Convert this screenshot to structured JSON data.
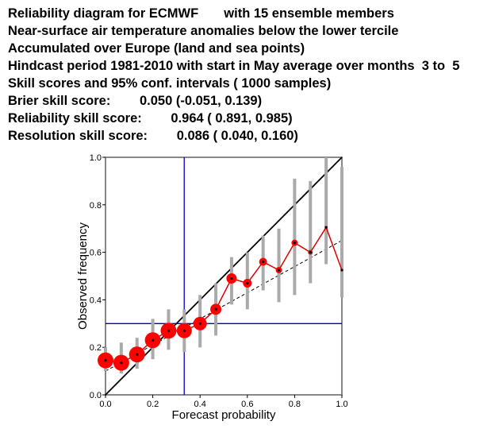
{
  "header": {
    "lines": [
      "Reliability diagram for ECMWF       with 15 ensemble members",
      "Near-surface air temperature anomalies below the lower tercile",
      "Accumulated over Europe (land and sea points)",
      "Hindcast period 1981-2010 with start in May average over months  3 to  5",
      "Skill scores and 95% conf. intervals ( 1000 samples)",
      "Brier skill score:        0.050 (-0.051, 0.139)",
      "Reliability skill score:        0.964 ( 0.891, 0.985)",
      "Resolution skill score:        0.086 ( 0.040, 0.160)"
    ]
  },
  "colors": {
    "frame": "#888888",
    "diagonal": "#000000",
    "climatology": "#0000bb",
    "ci_bars": "#aaaaaa",
    "points": "#ff0000",
    "reliability_line": "#dd0000",
    "center_dot": "#000000"
  },
  "chart_data": {
    "type": "scatter",
    "xlabel": "Forecast probability",
    "ylabel": "Observed frequency",
    "xlim": [
      0,
      1
    ],
    "ylim": [
      0,
      1
    ],
    "xticks": [
      "0.0",
      "0.2",
      "0.4",
      "0.6",
      "0.8",
      "1.0"
    ],
    "yticks": [
      "0.0",
      "0.2",
      "0.4",
      "0.6",
      "0.8",
      "1.0"
    ],
    "climatology": 0.333,
    "observed_climatology": 0.3,
    "regression": {
      "intercept": 0.1,
      "slope": 0.55
    },
    "points": [
      {
        "x": 0.0,
        "y": 0.145,
        "ci": [
          0.1,
          0.2
        ],
        "size": 1.0
      },
      {
        "x": 0.0667,
        "y": 0.135,
        "ci": [
          0.09,
          0.22
        ],
        "size": 1.0
      },
      {
        "x": 0.1333,
        "y": 0.17,
        "ci": [
          0.11,
          0.24
        ],
        "size": 1.0
      },
      {
        "x": 0.2,
        "y": 0.23,
        "ci": [
          0.15,
          0.32
        ],
        "size": 1.0
      },
      {
        "x": 0.2667,
        "y": 0.27,
        "ci": [
          0.19,
          0.36
        ],
        "size": 1.0
      },
      {
        "x": 0.3333,
        "y": 0.27,
        "ci": [
          0.18,
          0.36
        ],
        "size": 0.95
      },
      {
        "x": 0.4,
        "y": 0.3,
        "ci": [
          0.2,
          0.42
        ],
        "size": 0.85
      },
      {
        "x": 0.4667,
        "y": 0.36,
        "ci": [
          0.25,
          0.47
        ],
        "size": 0.7
      },
      {
        "x": 0.5333,
        "y": 0.49,
        "ci": [
          0.38,
          0.58
        ],
        "size": 0.65
      },
      {
        "x": 0.6,
        "y": 0.47,
        "ci": [
          0.36,
          0.6
        ],
        "size": 0.55
      },
      {
        "x": 0.6667,
        "y": 0.56,
        "ci": [
          0.44,
          0.67
        ],
        "size": 0.5
      },
      {
        "x": 0.7333,
        "y": 0.525,
        "ci": [
          0.39,
          0.7
        ],
        "size": 0.4
      },
      {
        "x": 0.8,
        "y": 0.64,
        "ci": [
          0.42,
          0.91
        ],
        "size": 0.4
      },
      {
        "x": 0.8667,
        "y": 0.6,
        "ci": [
          0.47,
          0.9
        ],
        "size": 0.3
      },
      {
        "x": 0.9333,
        "y": 0.705,
        "ci": [
          0.55,
          1.0
        ],
        "size": 0.18
      },
      {
        "x": 1.0,
        "y": 0.525,
        "ci": [
          0.41,
          0.96
        ],
        "size": 0.14
      }
    ]
  }
}
